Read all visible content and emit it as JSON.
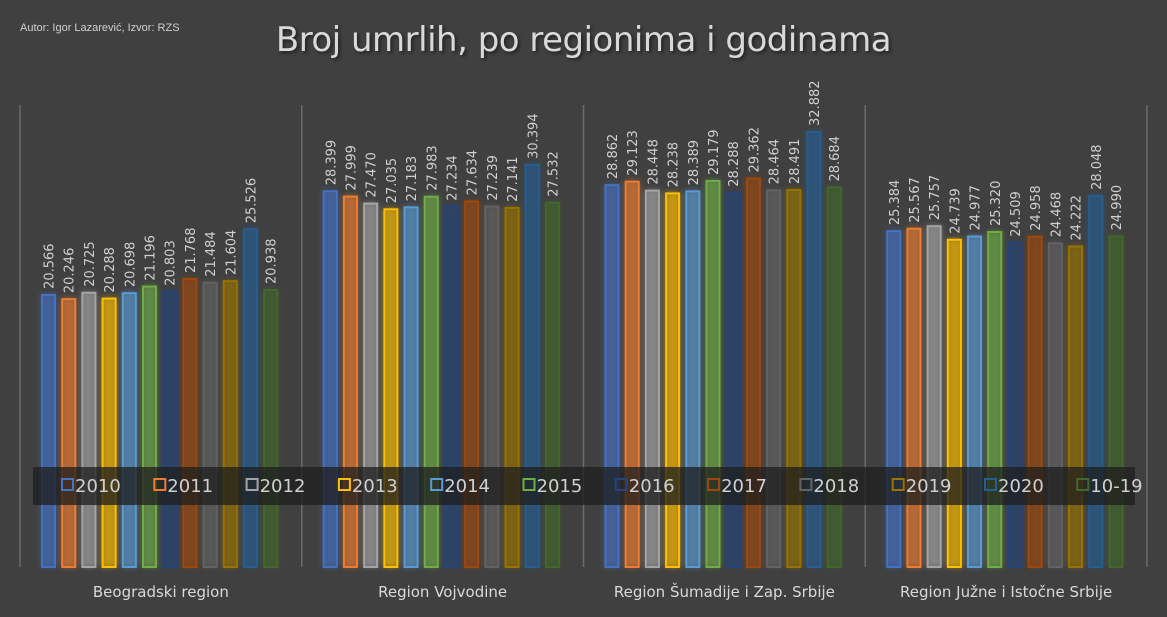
{
  "author_note": "Autor: Igor Lazarević, Izvor: RZS",
  "chart_data": {
    "type": "bar",
    "title": "Broj umrlih, po regionima i godinama",
    "categories": [
      "Beogradski region",
      "Region Vojvodine",
      "Region Šumadije i Zap. Srbije",
      "Region Južne i Istočne Srbije"
    ],
    "series": [
      {
        "name": "2010",
        "color": "#4472C4",
        "values": [
          20.566,
          28.399,
          28.862,
          25.384
        ]
      },
      {
        "name": "2011",
        "color": "#ED7D31",
        "values": [
          20.246,
          27.999,
          29.123,
          25.567
        ]
      },
      {
        "name": "2012",
        "color": "#A5A5A5",
        "values": [
          20.725,
          27.47,
          28.448,
          25.757
        ]
      },
      {
        "name": "2013",
        "color": "#FFC000",
        "values": [
          20.288,
          27.035,
          28.238,
          24.739
        ]
      },
      {
        "name": "2014",
        "color": "#5B9BD5",
        "values": [
          20.698,
          27.183,
          28.389,
          24.977
        ]
      },
      {
        "name": "2015",
        "color": "#70AD47",
        "values": [
          21.196,
          27.983,
          29.179,
          25.32
        ]
      },
      {
        "name": "2016",
        "color": "#264478",
        "values": [
          20.803,
          27.234,
          28.288,
          24.509
        ]
      },
      {
        "name": "2017",
        "color": "#9E480E",
        "values": [
          21.768,
          27.634,
          29.362,
          24.958
        ]
      },
      {
        "name": "2018",
        "color": "#636363",
        "values": [
          21.484,
          27.239,
          28.464,
          24.468
        ]
      },
      {
        "name": "2019",
        "color": "#997300",
        "values": [
          21.604,
          27.141,
          28.491,
          24.222
        ]
      },
      {
        "name": "2020",
        "color": "#255E91",
        "values": [
          25.526,
          30.394,
          32.882,
          28.048
        ]
      },
      {
        "name": "10-19",
        "color": "#43682B",
        "values": [
          20.938,
          27.532,
          28.684,
          24.99
        ]
      }
    ],
    "data_labels": [
      [
        "20.566",
        "20.246",
        "20.725",
        "20.288",
        "20.698",
        "21.196",
        "20.803",
        "21.768",
        "21.484",
        "21.604",
        "25.526",
        "20.938"
      ],
      [
        "28.399",
        "27.999",
        "27.470",
        "27.035",
        "27.183",
        "27.983",
        "27.234",
        "27.634",
        "27.239",
        "27.141",
        "30.394",
        "27.532"
      ],
      [
        "28.862",
        "29.123",
        "28.448",
        "28.238",
        "28.389",
        "29.179",
        "28.288",
        "29.362",
        "28.464",
        "28.491",
        "32.882",
        "28.684"
      ],
      [
        "25.384",
        "25.567",
        "25.757",
        "24.739",
        "24.977",
        "25.320",
        "24.509",
        "24.958",
        "24.468",
        "24.222",
        "28.048",
        "24.990"
      ]
    ],
    "ylim": [
      0,
      35
    ],
    "grid": false,
    "legend": "bottom (inside plot)",
    "xlabel": "",
    "ylabel": ""
  }
}
